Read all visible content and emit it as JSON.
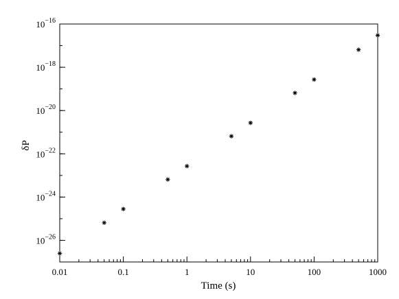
{
  "chart_data": {
    "type": "scatter",
    "title": "",
    "xlabel": "Time (s)",
    "ylabel": "δP",
    "xscale": "log",
    "yscale": "log",
    "xlim": [
      0.01,
      1000
    ],
    "ylim": [
      1e-27,
      1e-16
    ],
    "grid": false,
    "legend": "none",
    "marker": "asterisk",
    "x_ticks": [
      {
        "value": 0.01,
        "label": "0.01"
      },
      {
        "value": 0.1,
        "label": "0.1"
      },
      {
        "value": 1,
        "label": "1"
      },
      {
        "value": 10,
        "label": "10"
      },
      {
        "value": 100,
        "label": "100"
      },
      {
        "value": 1000,
        "label": "1000"
      }
    ],
    "y_ticks": [
      {
        "value": 1e-26,
        "base": "10",
        "exp": "−26"
      },
      {
        "value": 1e-24,
        "base": "10",
        "exp": "−24"
      },
      {
        "value": 1e-22,
        "base": "10",
        "exp": "−22"
      },
      {
        "value": 1e-20,
        "base": "10",
        "exp": "−20"
      },
      {
        "value": 1e-18,
        "base": "10",
        "exp": "−18"
      },
      {
        "value": 1e-16,
        "base": "10",
        "exp": "−16"
      }
    ],
    "series": [
      {
        "x": [
          0.01,
          0.05,
          0.1,
          0.5,
          1,
          5,
          10,
          50,
          100,
          500,
          1000
        ],
        "y": [
          2.5e-27,
          6.5e-26,
          2.8e-25,
          6.5e-24,
          2.7e-23,
          6.5e-22,
          2.7e-21,
          6.5e-20,
          2.7e-19,
          6.5e-18,
          3e-17
        ]
      }
    ]
  }
}
